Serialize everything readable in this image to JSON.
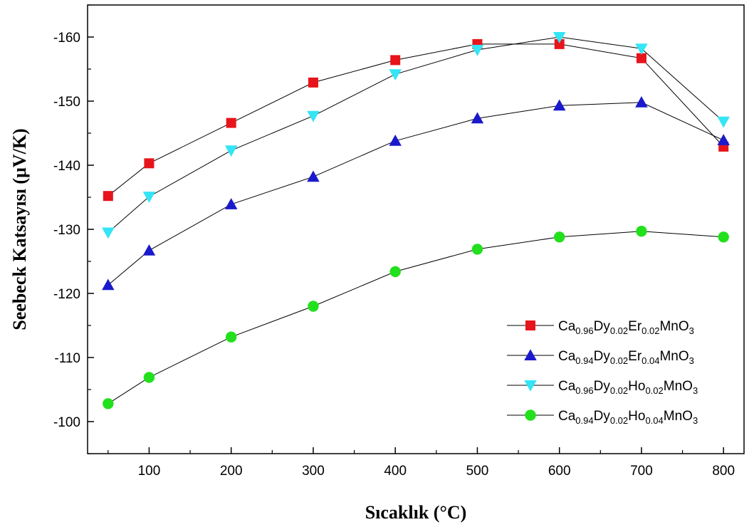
{
  "chart_data": {
    "type": "line",
    "xlabel": "Sıcaklık (°C)",
    "ylabel": "Seebeck Katsayısı (μV/K)",
    "xlim": [
      25,
      825
    ],
    "ylim": [
      -95,
      -165
    ],
    "xticks": [
      100,
      200,
      300,
      400,
      500,
      600,
      700,
      800
    ],
    "yticks": [
      -100,
      -110,
      -120,
      -130,
      -140,
      -150,
      -160
    ],
    "x": [
      50,
      100,
      200,
      300,
      400,
      500,
      600,
      700,
      800
    ],
    "grid": false,
    "legend_position": "bottom-right",
    "series": [
      {
        "name": "Ca0.96Dy0.02Er0.02MnO3",
        "label_parts": [
          [
            "Ca",
            ""
          ],
          [
            "0.96",
            "sub"
          ],
          [
            "Dy",
            ""
          ],
          [
            "0.02",
            "sub"
          ],
          [
            "Er",
            ""
          ],
          [
            "0.02",
            "sub"
          ],
          [
            "MnO",
            ""
          ],
          [
            "3",
            "sub"
          ]
        ],
        "marker": "square",
        "color": "#e8141b",
        "values": [
          -135.2,
          -140.3,
          -146.6,
          -152.9,
          -156.4,
          -158.9,
          -158.9,
          -156.7,
          -142.9
        ]
      },
      {
        "name": "Ca0.94Dy0.02Er0.04MnO3",
        "label_parts": [
          [
            "Ca",
            ""
          ],
          [
            "0.94",
            "sub"
          ],
          [
            "Dy",
            ""
          ],
          [
            "0.02",
            "sub"
          ],
          [
            "Er",
            ""
          ],
          [
            "0.04",
            "sub"
          ],
          [
            "MnO",
            ""
          ],
          [
            "3",
            "sub"
          ]
        ],
        "marker": "triangle-up",
        "color": "#1a1acc",
        "values": [
          -121.3,
          -126.7,
          -133.9,
          -138.2,
          -143.8,
          -147.3,
          -149.3,
          -149.8,
          -143.9
        ]
      },
      {
        "name": "Ca0.96Dy0.02Ho0.02MnO3",
        "label_parts": [
          [
            "Ca",
            ""
          ],
          [
            "0.96",
            "sub"
          ],
          [
            "Dy",
            ""
          ],
          [
            "0.02",
            "sub"
          ],
          [
            "Ho",
            ""
          ],
          [
            "0.02",
            "sub"
          ],
          [
            "MnO",
            ""
          ],
          [
            "3",
            "sub"
          ]
        ],
        "marker": "triangle-down",
        "color": "#33e5f5",
        "values": [
          -129.5,
          -135.1,
          -142.3,
          -147.7,
          -154.2,
          -158.0,
          -160.0,
          -158.2,
          -146.8
        ]
      },
      {
        "name": "Ca0.94Dy0.02Ho0.04MnO3",
        "label_parts": [
          [
            "Ca",
            ""
          ],
          [
            "0.94",
            "sub"
          ],
          [
            "Dy",
            ""
          ],
          [
            "0.02",
            "sub"
          ],
          [
            "Ho",
            ""
          ],
          [
            "0.04",
            "sub"
          ],
          [
            "MnO",
            ""
          ],
          [
            "3",
            "sub"
          ]
        ],
        "marker": "circle",
        "color": "#22e01c",
        "values": [
          -102.8,
          -106.9,
          -113.2,
          -118.0,
          -123.4,
          -126.9,
          -128.8,
          -129.7,
          -128.8
        ]
      }
    ]
  }
}
